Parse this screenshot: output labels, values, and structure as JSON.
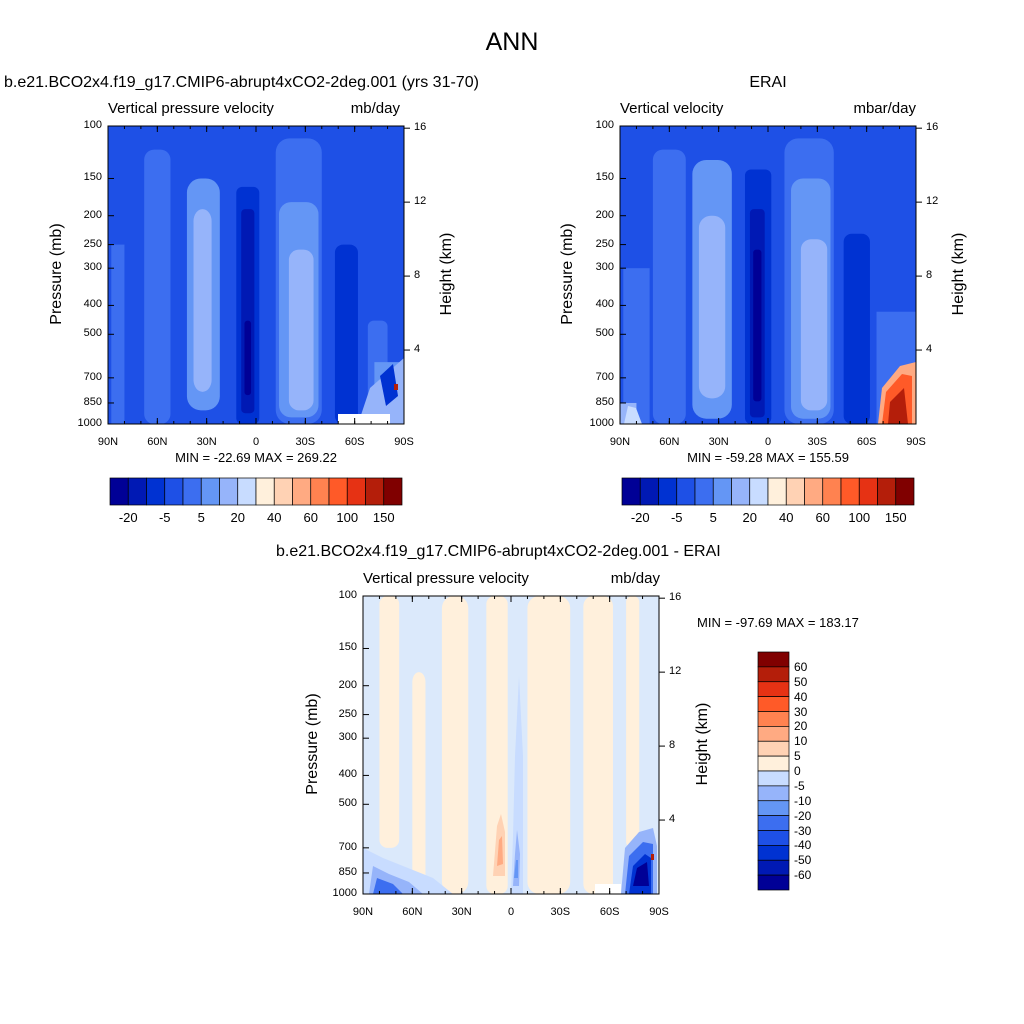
{
  "page_title": "ANN",
  "colors": {
    "blues": [
      "#000096",
      "#0019b4",
      "#0032d2",
      "#1e50e6",
      "#3c6ef0",
      "#6496f5",
      "#96b4fa",
      "#c8dcff"
    ],
    "reds": [
      "#fff0dc",
      "#ffd2b4",
      "#ffaa82",
      "#ff8250",
      "#ff5a28",
      "#e63214",
      "#b41e0a",
      "#800000"
    ],
    "diff_blues": [
      "#000096",
      "#0019b4",
      "#0032d2",
      "#1e50e6",
      "#3c6ef0",
      "#6496f5",
      "#96b4fa",
      "#c8dcff"
    ],
    "diff_reds": [
      "#fff0dc",
      "#ffd2b4",
      "#ffaa82",
      "#ff8250",
      "#ff5a28",
      "#e63214",
      "#b41e0a",
      "#800000"
    ]
  },
  "chart_data": [
    {
      "type": "heatmap",
      "title": "b.e21.BCO2x4.f19_g17.CMIP6-abrupt4xCO2-2deg.001 (yrs 31-70)",
      "left_subtitle": "Vertical pressure velocity",
      "right_subtitle": "mb/day",
      "ylabel": "Pressure (mb)",
      "y2label": "Height (km)",
      "x_ticks": [
        "90N",
        "60N",
        "30N",
        "0",
        "30S",
        "60S",
        "90S"
      ],
      "y_ticks": [
        "100",
        "150",
        "200",
        "250",
        "300",
        "400",
        "500",
        "700",
        "850",
        "1000"
      ],
      "y2_ticks": [
        "16",
        "12",
        "8",
        "4"
      ],
      "min_max": "MIN = -22.69  MAX = 269.22",
      "colorbar_labels": [
        "-20",
        "-5",
        "5",
        "20",
        "40",
        "60",
        "100",
        "150"
      ],
      "colorbar_orientation": "horizontal"
    },
    {
      "type": "heatmap",
      "title": "ERAI",
      "left_subtitle": "Vertical velocity",
      "right_subtitle": "mbar/day",
      "ylabel": "Pressure (mb)",
      "y2label": "Height (km)",
      "x_ticks": [
        "90N",
        "60N",
        "30N",
        "0",
        "30S",
        "60S",
        "90S"
      ],
      "y_ticks": [
        "100",
        "150",
        "200",
        "250",
        "300",
        "400",
        "500",
        "700",
        "850",
        "1000"
      ],
      "y2_ticks": [
        "16",
        "12",
        "8",
        "4"
      ],
      "min_max": "MIN = -59.28  MAX = 155.59",
      "colorbar_labels": [
        "-20",
        "-5",
        "5",
        "20",
        "40",
        "60",
        "100",
        "150"
      ],
      "colorbar_orientation": "horizontal"
    },
    {
      "type": "heatmap",
      "title": "b.e21.BCO2x4.f19_g17.CMIP6-abrupt4xCO2-2deg.001 - ERAI",
      "left_subtitle": "Vertical pressure velocity",
      "right_subtitle": "mb/day",
      "ylabel": "Pressure (mb)",
      "y2label": "Height (km)",
      "x_ticks": [
        "90N",
        "60N",
        "30N",
        "0",
        "30S",
        "60S",
        "90S"
      ],
      "y_ticks": [
        "100",
        "150",
        "200",
        "250",
        "300",
        "400",
        "500",
        "700",
        "850",
        "1000"
      ],
      "y2_ticks": [
        "16",
        "12",
        "8",
        "4"
      ],
      "min_max": "MIN = -97.69  MAX = 183.17",
      "colorbar_labels": [
        "60",
        "50",
        "40",
        "30",
        "20",
        "10",
        "5",
        "0",
        "-5",
        "-10",
        "-20",
        "-30",
        "-40",
        "-50",
        "-60"
      ],
      "colorbar_orientation": "vertical"
    }
  ]
}
